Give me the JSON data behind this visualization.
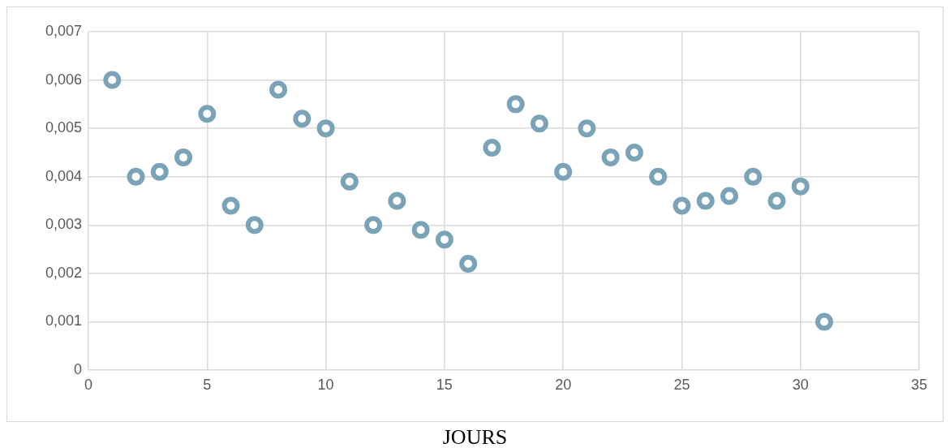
{
  "chart_data": {
    "type": "scatter",
    "xlabel": "JOURS",
    "x": [
      1,
      2,
      3,
      4,
      5,
      6,
      7,
      8,
      9,
      10,
      11,
      12,
      13,
      14,
      15,
      16,
      17,
      18,
      19,
      20,
      21,
      22,
      23,
      24,
      25,
      26,
      27,
      28,
      29,
      30,
      31
    ],
    "series": [
      {
        "color": "#7aa3b8",
        "values": [
          0.006,
          0.004,
          0.0041,
          0.0044,
          0.0053,
          0.0034,
          0.003,
          0.0058,
          0.0052,
          0.005,
          0.0039,
          0.003,
          0.0035,
          0.0029,
          0.0027,
          0.0022,
          0.0046,
          0.0055,
          0.0051,
          0.0041,
          0.005,
          0.0044,
          0.0045,
          0.004,
          0.0034,
          0.0035,
          0.0036,
          0.004,
          0.0035,
          0.0038,
          0.001
        ]
      }
    ],
    "xlim": [
      0,
      35
    ],
    "xticks": [
      0,
      5,
      10,
      15,
      20,
      25,
      30,
      35
    ],
    "ylim": [
      0,
      0.007
    ],
    "yticks": [
      0,
      {
        "value": 0.001,
        "label": "0,001"
      },
      {
        "value": 0.002,
        "label": "0,002"
      },
      {
        "value": 0.003,
        "label": "0,003"
      },
      {
        "value": 0.004,
        "label": "0,004"
      },
      {
        "value": 0.005,
        "label": "0,005"
      },
      {
        "value": 0.006,
        "label": "0,006"
      },
      {
        "value": 0.007,
        "label": "0,007"
      }
    ],
    "grid": true,
    "marker": "circle",
    "legend": false
  }
}
